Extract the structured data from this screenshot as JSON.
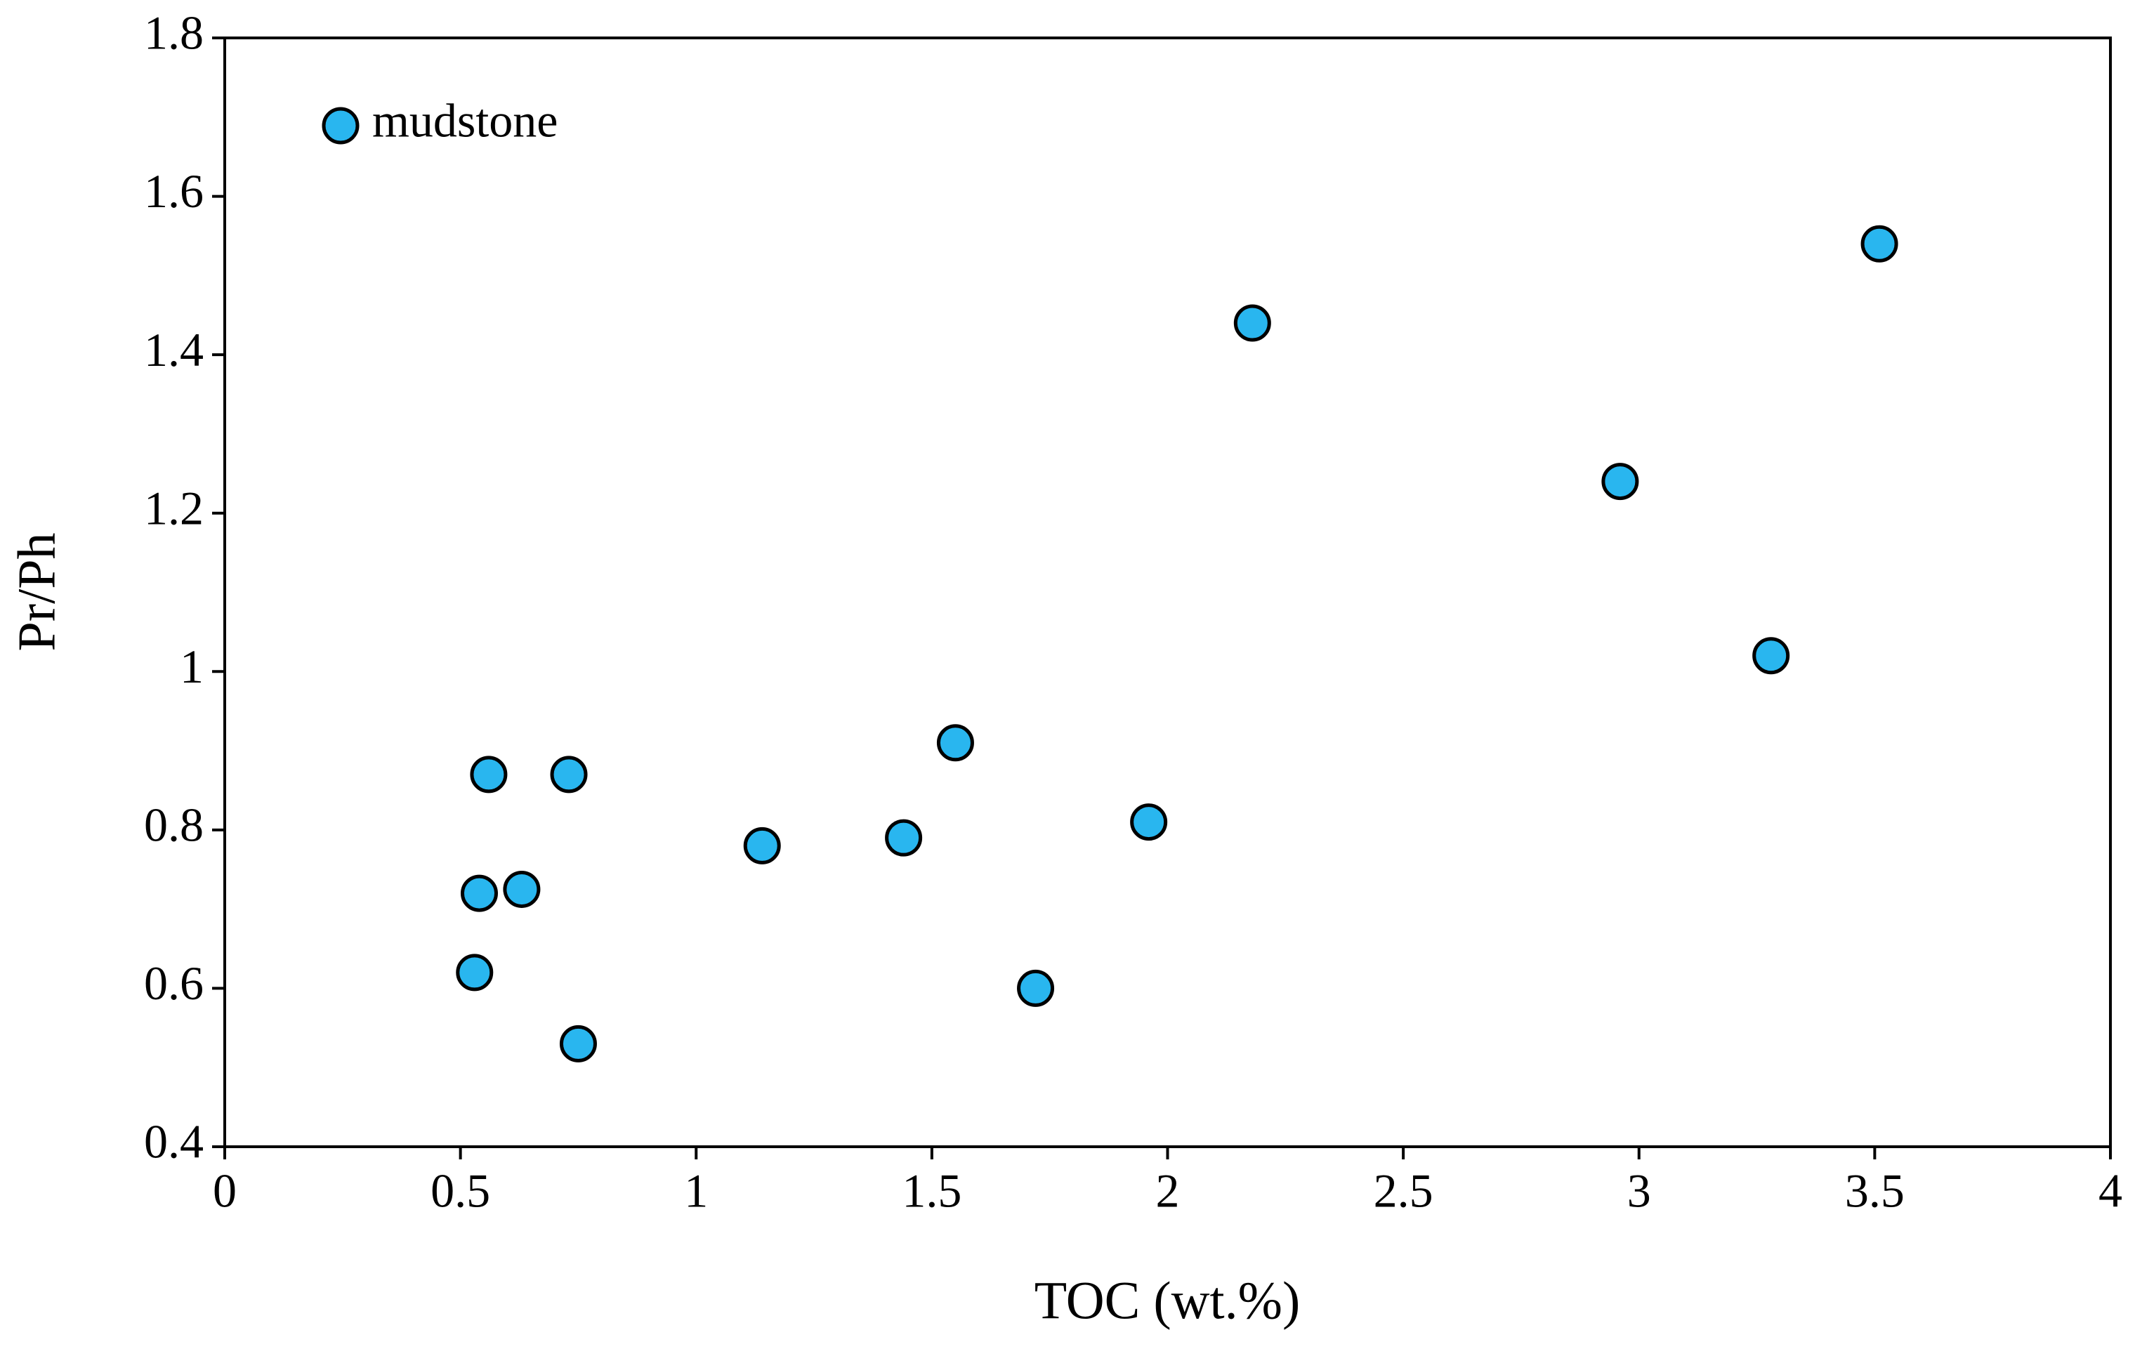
{
  "chart_data": {
    "type": "scatter",
    "xlabel": "TOC (wt.%)",
    "ylabel": "Pr/Ph",
    "series": [
      {
        "name": "mudstone",
        "color": "#29b6ef",
        "x": [
          2.18,
          3.51,
          2.96,
          3.28,
          1.55,
          1.96,
          1.44,
          1.14,
          1.72,
          0.56,
          0.73,
          0.54,
          0.63,
          0.53,
          0.75
        ],
        "values": [
          1.44,
          1.54,
          1.24,
          1.02,
          0.91,
          0.81,
          0.79,
          0.78,
          0.6,
          0.87,
          0.87,
          0.72,
          0.725,
          0.62,
          0.53
        ]
      }
    ],
    "xlim": [
      0,
      4
    ],
    "xticks": [
      0,
      0.5,
      1,
      1.5,
      2,
      2.5,
      3,
      3.5,
      4
    ],
    "ylim": [
      0.4,
      1.8
    ],
    "yticks": [
      0.4,
      0.6,
      0.8,
      1,
      1.2,
      1.4,
      1.6,
      1.8
    ],
    "grid": false,
    "legend": "upper left"
  }
}
